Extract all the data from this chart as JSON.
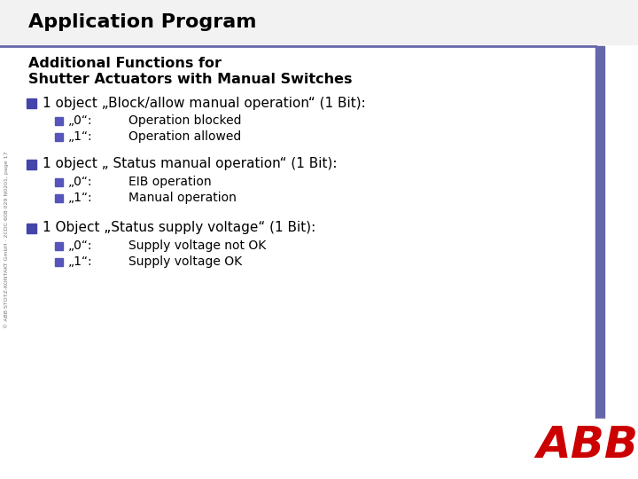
{
  "title": "Application Program",
  "subtitle_line1": "Additional Functions for",
  "subtitle_line2": "Shutter Actuators with Manual Switches",
  "bg_color": "#ffffff",
  "title_color": "#000000",
  "title_bg": "#f2f2f2",
  "accent_line_color": "#6666aa",
  "right_bar_color": "#6666aa",
  "bullet_color": "#4444aa",
  "sub_bullet_color": "#5555bb",
  "sections": [
    {
      "main": "1 object „Block/allow manual operation“ (1 Bit):",
      "items": [
        [
          "„0“:",
          "Operation blocked"
        ],
        [
          "„1“:",
          "Operation allowed"
        ]
      ]
    },
    {
      "main": "1 object „ Status manual operation“ (1 Bit):",
      "items": [
        [
          "„0“:",
          "EIB operation"
        ],
        [
          "„1“:",
          "Manual operation"
        ]
      ]
    },
    {
      "main": "1 Object „Status supply voltage“ (1 Bit):",
      "items": [
        [
          "„0“:",
          "Supply voltage not OK"
        ],
        [
          "„1“:",
          "Supply voltage OK"
        ]
      ]
    }
  ],
  "sidebar_text": "© ABB STOTZ-KONTAKT GmbH · 2CDC 608 029 N0201, page 17",
  "logo_color": "#cc0000",
  "figsize": [
    7.2,
    5.4
  ],
  "dpi": 100
}
